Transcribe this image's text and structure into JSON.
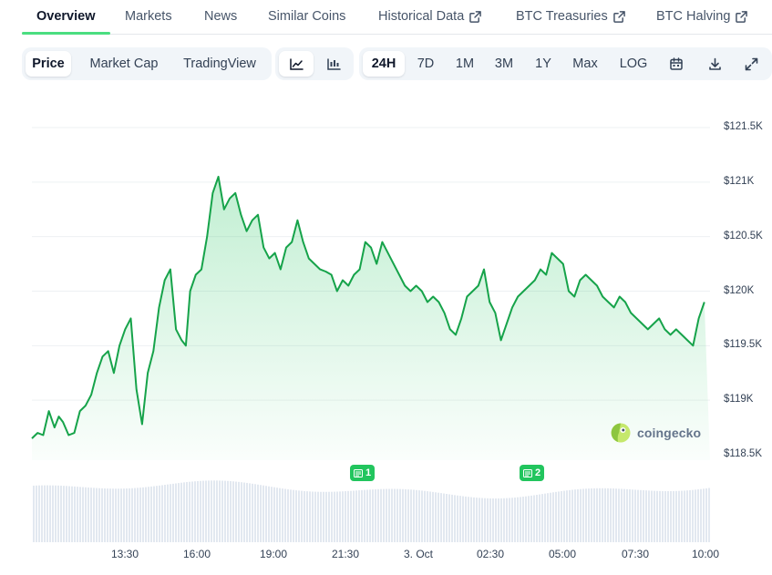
{
  "nav": {
    "tabs": [
      {
        "label": "Overview",
        "active": true
      },
      {
        "label": "Markets"
      },
      {
        "label": "News"
      },
      {
        "label": "Similar Coins"
      },
      {
        "label": "Historical Data",
        "external": true
      },
      {
        "label": "BTC Treasuries",
        "external": true
      },
      {
        "label": "BTC Halving",
        "external": true
      }
    ]
  },
  "toolbar": {
    "metric_tabs": [
      "Price",
      "Market Cap",
      "TradingView"
    ],
    "active_metric": "Price",
    "chart_style_icons": [
      "line-chart-icon",
      "candlestick-chart-icon"
    ],
    "ranges": [
      "24H",
      "7D",
      "1M",
      "3M",
      "1Y",
      "Max",
      "LOG"
    ],
    "active_range": "24H",
    "action_icons": [
      "calendar-icon",
      "download-icon",
      "expand-icon"
    ]
  },
  "brand": {
    "name": "coingecko",
    "icon": "gecko-logo-icon"
  },
  "news_markers": [
    {
      "label": "1",
      "time": "21:15"
    },
    {
      "label": "2",
      "time": "04:00"
    }
  ],
  "colors": {
    "line": "#16a34a",
    "accent": "#22c55e",
    "volume": "#e2e8f0"
  },
  "chart_data": {
    "type": "area",
    "title": "",
    "xlabel": "",
    "ylabel": "",
    "ylim": [
      118500,
      121750
    ],
    "x_ticks": [
      "13:30",
      "16:00",
      "19:00",
      "21:30",
      "3. Oct",
      "02:30",
      "05:00",
      "07:30",
      "10:00"
    ],
    "y_ticks": [
      "$118.5K",
      "$119K",
      "$119.5K",
      "$120K",
      "$120.5K",
      "$121K",
      "$121.5K"
    ],
    "y_tick_values": [
      118500,
      119000,
      119500,
      120000,
      120500,
      121000,
      121500
    ],
    "grid": true,
    "legend": "none",
    "x_hours_from_start": [
      0,
      0.2,
      0.4,
      0.6,
      0.8,
      0.95,
      1.1,
      1.3,
      1.5,
      1.7,
      1.9,
      2.1,
      2.3,
      2.5,
      2.7,
      2.9,
      3.1,
      3.3,
      3.5,
      3.7,
      3.9,
      4.1,
      4.3,
      4.5,
      4.7,
      4.9,
      5.1,
      5.3,
      5.45,
      5.6,
      5.8,
      6.0,
      6.2,
      6.4,
      6.6,
      6.8,
      7.0,
      7.2,
      7.4,
      7.6,
      7.8,
      8.0,
      8.2,
      8.4,
      8.6,
      8.8,
      9.0,
      9.2,
      9.4,
      9.6,
      9.8,
      10.0,
      10.2,
      10.4,
      10.6,
      10.8,
      11.0,
      11.2,
      11.4,
      11.6,
      11.8,
      12.0,
      12.2,
      12.4,
      12.6,
      12.8,
      13.0,
      13.2,
      13.4,
      13.6,
      13.8,
      14.0,
      14.2,
      14.4,
      14.6,
      14.8,
      15.0,
      15.2,
      15.4,
      15.6,
      15.8,
      16.0,
      16.2,
      16.4,
      16.6,
      16.8,
      17.0,
      17.2,
      17.4,
      17.6,
      17.8,
      18.0,
      18.2,
      18.4,
      18.6,
      18.8,
      19.0,
      19.2,
      19.4,
      19.6,
      19.8,
      20.0,
      20.2,
      20.4,
      20.6,
      20.8,
      21.0,
      21.2,
      21.4,
      21.6,
      21.8,
      22.0,
      22.2,
      22.4,
      22.6,
      22.8,
      23.0,
      23.2,
      23.4,
      23.6,
      23.8,
      24.0
    ],
    "values": [
      118650,
      118700,
      118680,
      118900,
      118750,
      118850,
      118800,
      118680,
      118700,
      118900,
      118950,
      119050,
      119250,
      119400,
      119450,
      119250,
      119500,
      119650,
      119750,
      119100,
      118780,
      119250,
      119450,
      119850,
      120100,
      120200,
      119650,
      119550,
      119500,
      120000,
      120150,
      120200,
      120500,
      120900,
      121050,
      120750,
      120850,
      120900,
      120700,
      120550,
      120650,
      120700,
      120400,
      120300,
      120350,
      120200,
      120400,
      120450,
      120650,
      120450,
      120300,
      120250,
      120200,
      120180,
      120150,
      120000,
      120100,
      120050,
      120150,
      120200,
      120450,
      120400,
      120250,
      120450,
      120350,
      120250,
      120150,
      120050,
      120000,
      120050,
      120000,
      119900,
      119950,
      119900,
      119800,
      119650,
      119600,
      119750,
      119950,
      120000,
      120050,
      120200,
      119900,
      119800,
      119550,
      119700,
      119850,
      119950,
      120000,
      120050,
      120100,
      120200,
      120150,
      120350,
      120300,
      120250,
      120000,
      119950,
      120100,
      120150,
      120100,
      120050,
      119950,
      119900,
      119850,
      119950,
      119900,
      119800,
      119750,
      119700,
      119650,
      119700,
      119750,
      119650,
      119600,
      119650,
      119600,
      119550,
      119500,
      119750,
      119900
    ]
  }
}
